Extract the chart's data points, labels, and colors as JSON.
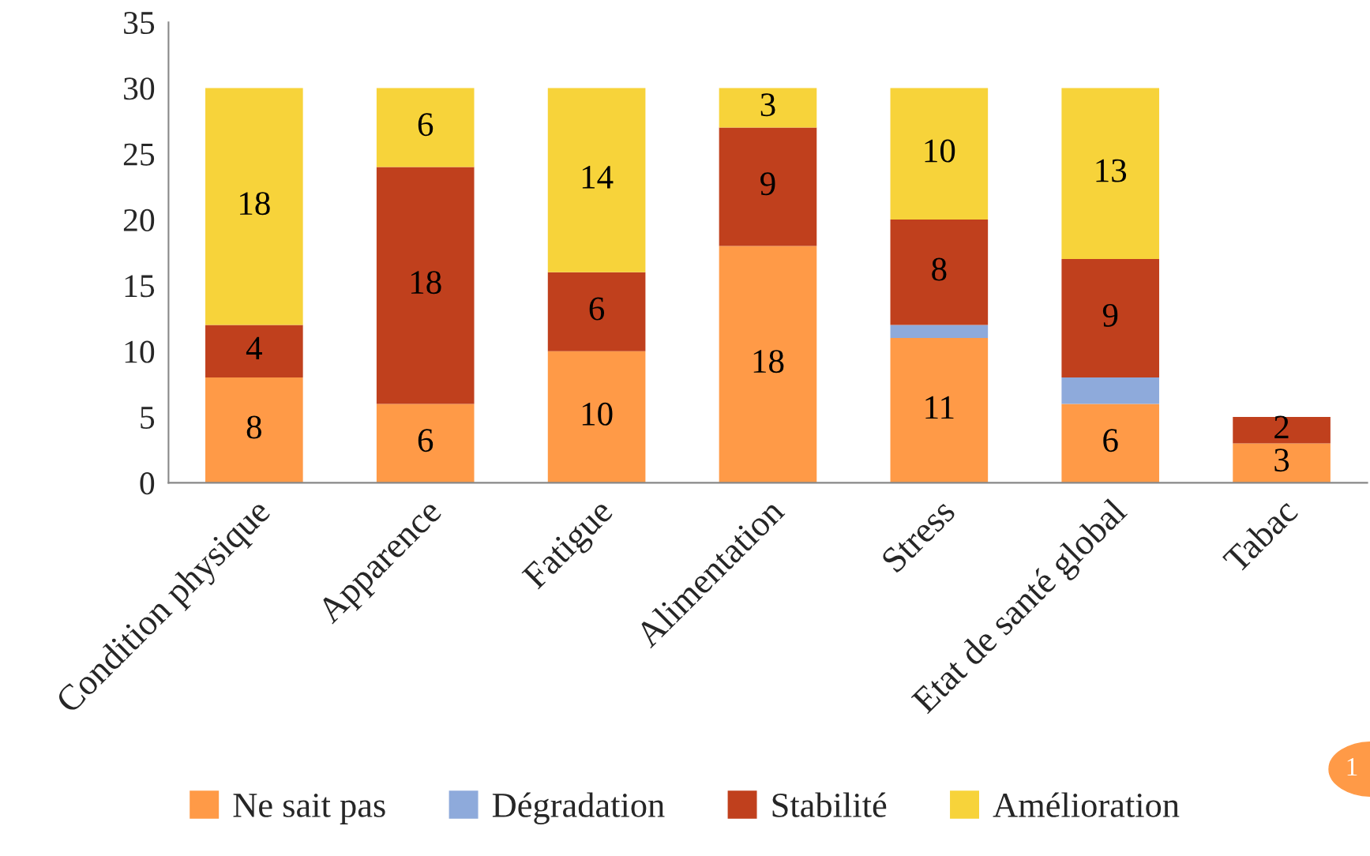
{
  "chart_data": {
    "type": "bar",
    "stacked": true,
    "categories": [
      "Condition physique",
      "Apparence",
      "Fatigue",
      "Alimentation",
      "Stress",
      "Etat de santé global",
      "Tabac"
    ],
    "series": [
      {
        "name": "Ne sait pas",
        "color": "#ff9a47",
        "values": [
          8,
          6,
          10,
          18,
          11,
          6,
          3
        ],
        "value_labels": [
          "8",
          "6",
          "10",
          "18",
          "11",
          "6",
          "3"
        ]
      },
      {
        "name": "Dégradation",
        "color": "#8eaadb",
        "values": [
          null,
          null,
          null,
          null,
          1,
          2,
          null
        ],
        "value_labels": [
          null,
          null,
          null,
          null,
          null,
          null,
          null
        ]
      },
      {
        "name": "Stabilité",
        "color": "#c0401d",
        "values": [
          4,
          18,
          6,
          9,
          8,
          9,
          2
        ],
        "value_labels": [
          "4",
          "18",
          "6",
          "9",
          "8",
          "9",
          "2"
        ]
      },
      {
        "name": "Amélioration",
        "color": "#f7d33a",
        "values": [
          18,
          6,
          14,
          3,
          10,
          13,
          null
        ],
        "value_labels": [
          "18",
          "6",
          "14",
          "3",
          "10",
          "13",
          null
        ]
      }
    ],
    "ylim": [
      0,
      35
    ],
    "yticks": [
      0,
      5,
      10,
      15,
      20,
      25,
      30,
      35
    ],
    "grid": false,
    "legend": "bottom",
    "annotations": [
      "1"
    ]
  }
}
